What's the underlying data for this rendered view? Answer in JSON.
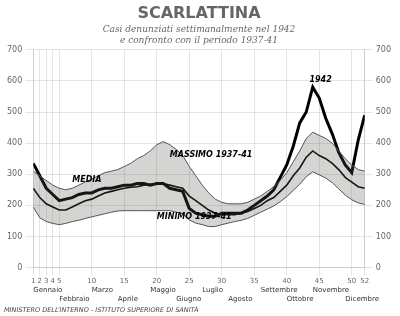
{
  "chart_data": {
    "type": "line",
    "title": "SCARLATTINA",
    "subtitle": "Casi denunziati settimanalmente nel 1942\ne confronto con il periodo 1937-41",
    "footer": "MINISTERO DELL’INTERNO - ISTITUTO SUPERIORE DI SANITÀ",
    "x": [
      1,
      2,
      3,
      4,
      5,
      6,
      7,
      8,
      9,
      10,
      11,
      12,
      13,
      14,
      15,
      16,
      17,
      18,
      19,
      20,
      21,
      22,
      23,
      24,
      25,
      26,
      27,
      28,
      29,
      30,
      31,
      32,
      33,
      34,
      35,
      36,
      37,
      38,
      39,
      40,
      41,
      42,
      43,
      44,
      45,
      46,
      47,
      48,
      49,
      50,
      51,
      52
    ],
    "xlim": [
      1,
      52
    ],
    "xticks": [
      1,
      2,
      3,
      4,
      5,
      10,
      15,
      20,
      25,
      30,
      35,
      40,
      45,
      50,
      52
    ],
    "ylim": [
      0,
      700
    ],
    "yticks": [
      0,
      100,
      200,
      300,
      400,
      500,
      600,
      700
    ],
    "y2lim": [
      0,
      700
    ],
    "y2ticks": [
      0,
      100,
      200,
      300,
      400,
      500,
      600,
      700
    ],
    "grid": true,
    "series": [
      {
        "color": "#555550",
        "values": [
          310,
          295,
          280,
          265,
          255,
          250,
          255,
          265,
          275,
          285,
          295,
          305,
          310,
          315,
          325,
          335,
          350,
          360,
          375,
          395,
          405,
          395,
          380,
          360,
          325,
          295,
          265,
          240,
          220,
          210,
          205,
          205,
          205,
          210,
          220,
          230,
          245,
          260,
          280,
          305,
          340,
          375,
          415,
          435,
          425,
          415,
          400,
          375,
          350,
          330,
          315,
          310
        ]
      },
      {
        "color": "#555550",
        "values": [
          195,
          160,
          148,
          142,
          138,
          142,
          148,
          152,
          158,
          163,
          168,
          173,
          178,
          182,
          183,
          183,
          183,
          183,
          183,
          183,
          183,
          183,
          178,
          173,
          153,
          143,
          138,
          132,
          132,
          138,
          143,
          148,
          152,
          158,
          168,
          178,
          188,
          198,
          212,
          228,
          248,
          268,
          292,
          308,
          298,
          288,
          273,
          253,
          233,
          218,
          208,
          203
        ]
      },
      {
        "color": "#000000",
        "values": [
          255,
          225,
          205,
          195,
          185,
          185,
          195,
          205,
          215,
          220,
          230,
          240,
          245,
          250,
          255,
          258,
          260,
          265,
          268,
          270,
          270,
          265,
          260,
          255,
          230,
          215,
          200,
          185,
          175,
          170,
          170,
          170,
          175,
          180,
          190,
          200,
          215,
          225,
          245,
          265,
          295,
          320,
          355,
          375,
          360,
          350,
          335,
          315,
          290,
          275,
          260,
          255
        ]
      },
      {
        "color": "#000000",
        "values": [
          335,
          295,
          255,
          235,
          215,
          220,
          225,
          235,
          240,
          240,
          250,
          255,
          255,
          260,
          265,
          265,
          270,
          270,
          265,
          270,
          270,
          255,
          250,
          245,
          190,
          175,
          170,
          165,
          165,
          175,
          175,
          175,
          175,
          185,
          200,
          215,
          230,
          250,
          290,
          330,
          390,
          465,
          500,
          580,
          545,
          480,
          430,
          370,
          330,
          305,
          410,
          490
        ]
      }
    ],
    "annotations": [
      {
        "text": "MEDIA",
        "x": 7,
        "y": 275
      },
      {
        "text": "MASSIMO 1937-41",
        "x": 22,
        "y": 355
      },
      {
        "text": "MINIMO 1937-41",
        "x": 20,
        "y": 155
      },
      {
        "text": "1942",
        "x": 43.5,
        "y": 595
      }
    ],
    "month_labels": [
      {
        "text": "Gennaio",
        "x": 1
      },
      {
        "text": "Febbraio",
        "x": 5
      },
      {
        "text": "Marzo",
        "x": 10
      },
      {
        "text": "Aprile",
        "x": 14
      },
      {
        "text": "Maggio",
        "x": 19
      },
      {
        "text": "Giugno",
        "x": 23
      },
      {
        "text": "Luglio",
        "x": 27
      },
      {
        "text": "Agosto",
        "x": 31
      },
      {
        "text": "Settembre",
        "x": 36
      },
      {
        "text": "Ottobre",
        "x": 40
      },
      {
        "text": "Novembre",
        "x": 44
      },
      {
        "text": "Dicembre",
        "x": 49
      }
    ]
  }
}
